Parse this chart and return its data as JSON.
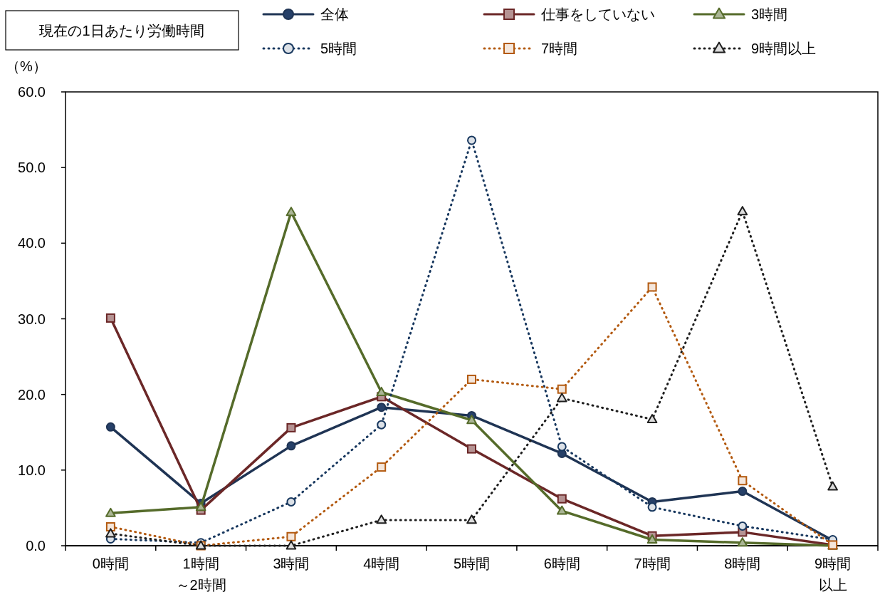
{
  "chart_data": {
    "type": "line",
    "legend_title": "現在の1日あたり労働時間",
    "ylabel": "（%）",
    "categories": [
      "0時間",
      "1時間～2時間",
      "3時間",
      "4時間",
      "5時間",
      "6時間",
      "7時間",
      "8時間",
      "9時間以上"
    ],
    "ylim": [
      0,
      60
    ],
    "yticks": [
      {
        "value": 0,
        "label": "0.0"
      },
      {
        "value": 10,
        "label": "10.0"
      },
      {
        "value": 20,
        "label": "20.0"
      },
      {
        "value": 30,
        "label": "30.0"
      },
      {
        "value": 40,
        "label": "40.0"
      },
      {
        "value": 50,
        "label": "50.0"
      },
      {
        "value": 60,
        "label": "60.0"
      }
    ],
    "grid": false,
    "legend": "top",
    "series": [
      {
        "name": "全体",
        "color": "#1f3454",
        "marker": "circle",
        "line_style": "solid",
        "values": [
          15.7,
          5.6,
          13.2,
          18.3,
          17.2,
          12.2,
          5.8,
          7.2,
          0.7
        ]
      },
      {
        "name": "仕事をしていない",
        "color": "#6b2727",
        "marker": "square",
        "line_style": "solid",
        "values": [
          30.1,
          4.7,
          15.6,
          19.7,
          12.8,
          6.2,
          1.3,
          1.8,
          0.1
        ]
      },
      {
        "name": "3時間",
        "color": "#556b2a",
        "marker": "triangle",
        "line_style": "solid",
        "values": [
          4.3,
          5.1,
          44.1,
          20.3,
          16.6,
          4.6,
          0.8,
          0.4,
          0.0
        ]
      },
      {
        "name": "5時間",
        "color": "#17375e",
        "marker": "circle",
        "line_style": "dotted",
        "values": [
          0.9,
          0.4,
          5.8,
          16.0,
          53.6,
          13.1,
          5.1,
          2.6,
          0.8
        ]
      },
      {
        "name": "7時間",
        "color": "#b35a10",
        "marker": "square",
        "line_style": "dotted",
        "values": [
          2.5,
          0.0,
          1.2,
          10.4,
          22.0,
          20.7,
          34.2,
          8.6,
          0.1
        ]
      },
      {
        "name": "9時間以上",
        "color": "#1e1e1e",
        "marker": "triangle",
        "line_style": "dotted",
        "values": [
          1.6,
          0.0,
          0.0,
          3.4,
          3.4,
          19.5,
          16.7,
          44.2,
          7.8
        ]
      }
    ]
  }
}
